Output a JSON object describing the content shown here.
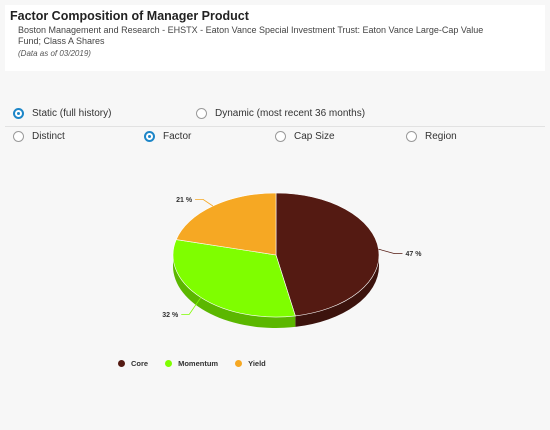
{
  "header": {
    "title": "Factor Composition of Manager Product",
    "subtitle": "Boston Management and Research - EHSTX - Eaton Vance Special Investment Trust: Eaton Vance Large-Cap Value Fund; Class A Shares",
    "as_of": "(Data as of 03/2019)"
  },
  "history_options": [
    {
      "label": "Static (full history)",
      "checked": true
    },
    {
      "label": "Dynamic (most recent 36 months)",
      "checked": false
    }
  ],
  "view_options": [
    {
      "label": "Distinct",
      "checked": false
    },
    {
      "label": "Factor",
      "checked": true
    },
    {
      "label": "Cap Size",
      "checked": false
    },
    {
      "label": "Region",
      "checked": false
    }
  ],
  "chart_data": {
    "type": "pie",
    "style": "3d",
    "slices": [
      {
        "name": "Core",
        "value": 47,
        "label": "47 %",
        "color": "#541a12"
      },
      {
        "name": "Momentum",
        "value": 32,
        "label": "32 %",
        "color": "#7ffe00"
      },
      {
        "name": "Yield",
        "value": 21,
        "label": "21 %",
        "color": "#f6a823"
      }
    ],
    "legend_position": "bottom-left"
  },
  "legend": [
    {
      "label": "Core",
      "color": "#541a12"
    },
    {
      "label": "Momentum",
      "color": "#7ffe00"
    },
    {
      "label": "Yield",
      "color": "#f6a823"
    }
  ]
}
